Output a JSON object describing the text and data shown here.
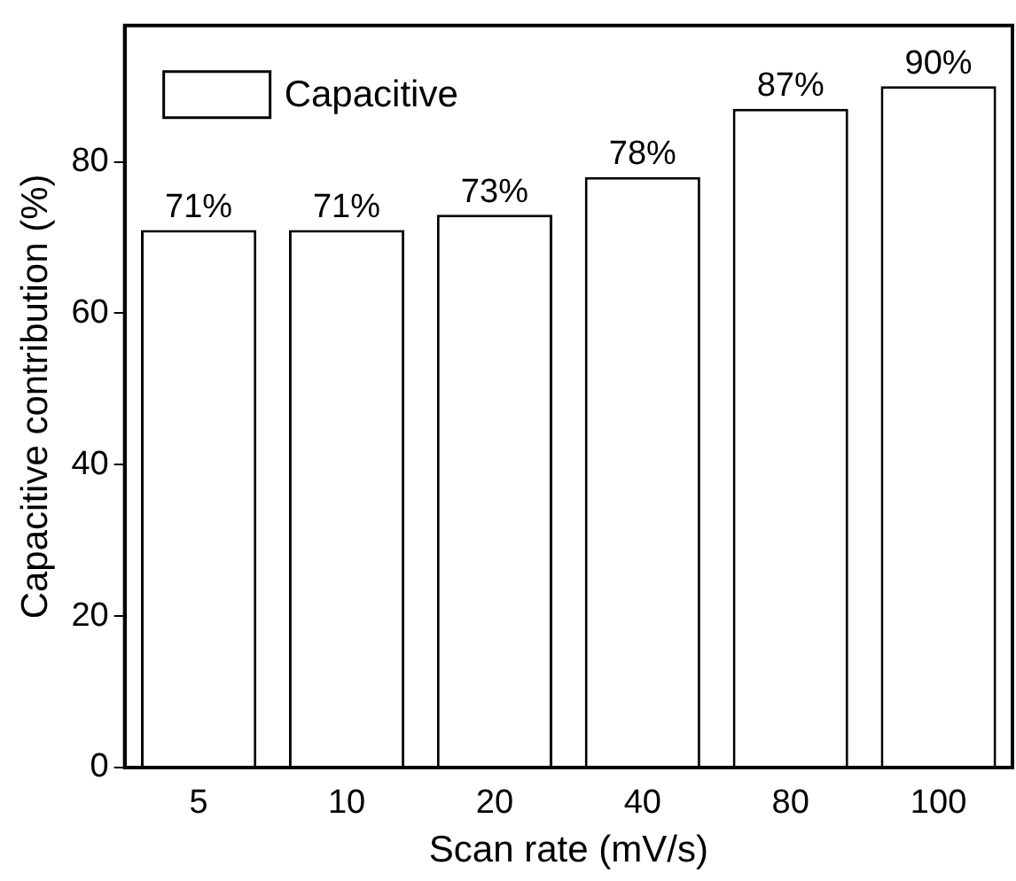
{
  "chart_data": {
    "type": "bar",
    "xlabel": "Scan rate (mV/s)",
    "ylabel": "Capacitive contribution (%)",
    "categories": [
      "5",
      "10",
      "20",
      "40",
      "80",
      "100"
    ],
    "series": [
      {
        "name": "Capacitive",
        "color": "#ffffff",
        "values": [
          71,
          71,
          73,
          78,
          87,
          90
        ],
        "value_labels": [
          "71%",
          "71%",
          "73%",
          "78%",
          "87%",
          "90%"
        ]
      }
    ],
    "ylim": [
      0,
      98
    ],
    "yticks": [
      0,
      20,
      40,
      60,
      80
    ],
    "grid": false,
    "legend": "top left"
  }
}
